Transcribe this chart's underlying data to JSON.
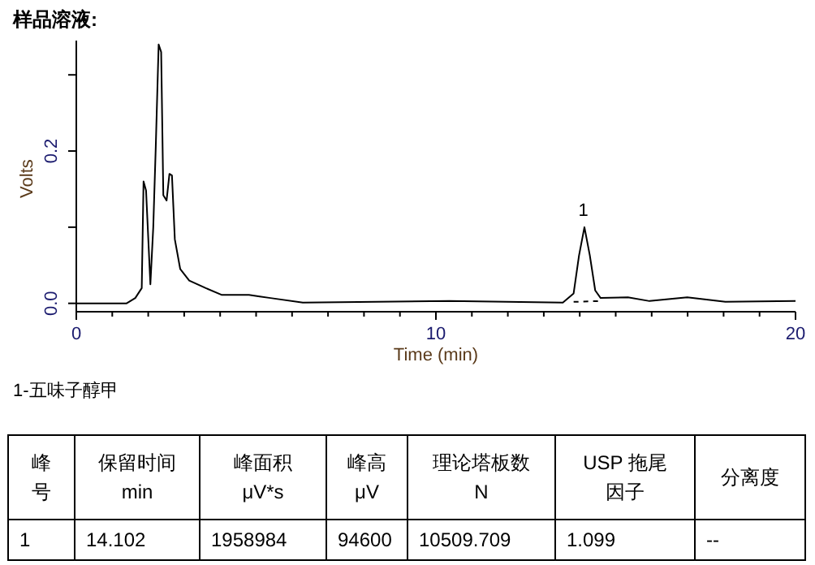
{
  "chart_data": [
    {
      "type": "line",
      "title": "样品溶液:",
      "xlabel": "Time (min)",
      "ylabel": "Volts",
      "annotations": [
        {
          "text": "1",
          "x": 14.1,
          "y": 0.1
        },
        "1-五味子醇甲"
      ],
      "series": [
        {
          "color": "#000000",
          "x": [
            0,
            1.4,
            1.64,
            1.82,
            1.87,
            1.94,
            2.06,
            2.14,
            2.21,
            2.29,
            2.36,
            2.42,
            2.51,
            2.59,
            2.66,
            2.74,
            2.89,
            3.14,
            3.6,
            4.05,
            4.8,
            5.1,
            5.4,
            6.3,
            10.37,
            13.53,
            13.83,
            13.98,
            14.13,
            14.28,
            14.43,
            14.58,
            15.34,
            15.94,
            16.99,
            18.05,
            20
          ],
          "values": [
            0,
            0,
            0.007,
            0.02,
            0.16,
            0.148,
            0.025,
            0.1,
            0.206,
            0.34,
            0.33,
            0.142,
            0.135,
            0.17,
            0.168,
            0.084,
            0.045,
            0.03,
            0.02,
            0.011,
            0.011,
            0.009,
            0.007,
            0.001,
            0.003,
            0.001,
            0.013,
            0.063,
            0.1,
            0.063,
            0.017,
            0.007,
            0.008,
            0.003,
            0.008,
            0.002,
            0.003
          ]
        },
        {
          "color": "#000000",
          "line_style": "dashed",
          "x": [
            13.83,
            14.58
          ],
          "values": [
            0.002,
            0.003
          ]
        }
      ],
      "xlim": [
        0,
        20
      ],
      "ylim": [
        -0.011,
        0.345
      ],
      "xticks": [
        0,
        {
          "value": 1,
          "label": null
        },
        {
          "value": 2,
          "label": null
        },
        {
          "value": 3,
          "label": null
        },
        {
          "value": 4,
          "label": null
        },
        {
          "value": 5,
          "label": null
        },
        {
          "value": 6,
          "label": null
        },
        {
          "value": 7,
          "label": null
        },
        {
          "value": 8,
          "label": null
        },
        {
          "value": 9,
          "label": null
        },
        10,
        {
          "value": 11,
          "label": null
        },
        {
          "value": 12,
          "label": null
        },
        {
          "value": 13,
          "label": null
        },
        {
          "value": 14,
          "label": null
        },
        {
          "value": 15,
          "label": null
        },
        {
          "value": 16,
          "label": null
        },
        {
          "value": 17,
          "label": null
        },
        {
          "value": 18,
          "label": null
        },
        {
          "value": 19,
          "label": null
        },
        20
      ],
      "yticks": [
        {
          "value": 0,
          "label": "0.0"
        },
        {
          "value": 0.1,
          "label": null
        },
        {
          "value": 0.2,
          "label": "0.2"
        },
        {
          "value": 0.3,
          "label": null
        }
      ]
    },
    {
      "type": "other",
      "annotations": [
        "峰号",
        "保留时间\nmin",
        "峰面积\nμV*s",
        "峰高\nμV",
        "理论塔板数\nN",
        "USP 拖尾因子",
        "分离度",
        "1",
        "14.102",
        "1958984",
        "94600",
        "10509.709",
        "1.099",
        "--"
      ]
    }
  ]
}
